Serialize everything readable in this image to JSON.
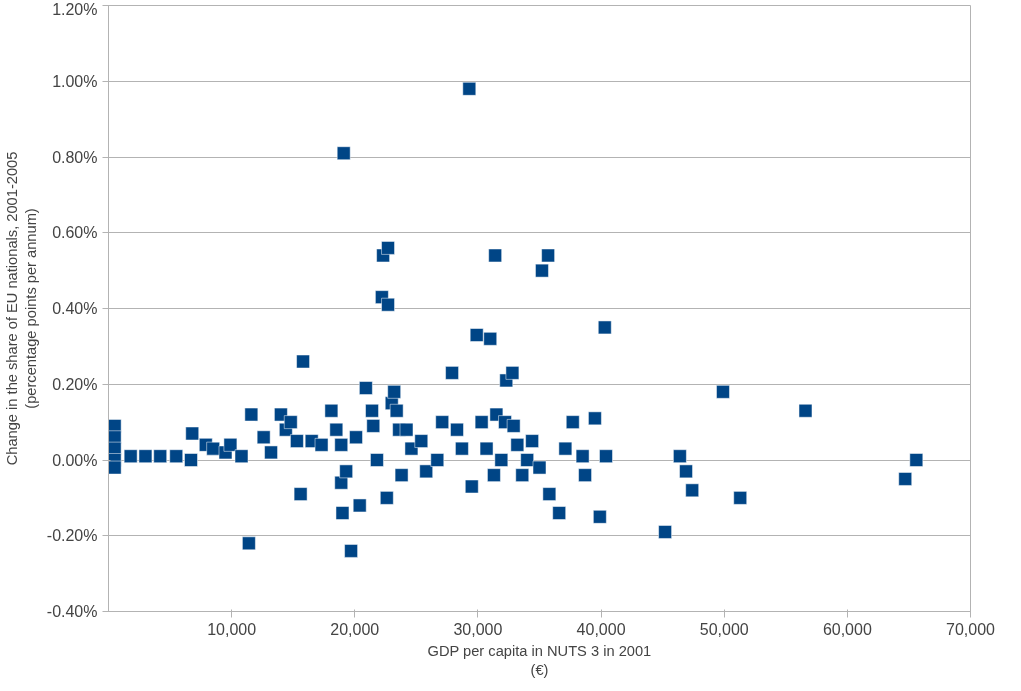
{
  "chart_data": {
    "type": "scatter",
    "xlabel": "GDP per capita in NUTS 3 in 2001\n(€)",
    "ylabel": "Change in the share of EU nationals, 2001-2005\n(percentage points per annum)",
    "marker": "square",
    "grid": "y",
    "xlim": [
      0,
      70000
    ],
    "xticks": [
      {
        "value": 10000,
        "label": "10,000"
      },
      {
        "value": 20000,
        "label": "20,000"
      },
      {
        "value": 30000,
        "label": "30,000"
      },
      {
        "value": 40000,
        "label": "40,000"
      },
      {
        "value": 50000,
        "label": "50,000"
      },
      {
        "value": 60000,
        "label": "60,000"
      },
      {
        "value": 70000,
        "label": "70,000"
      }
    ],
    "ylim": [
      -0.4,
      1.2
    ],
    "yticks": [
      {
        "value": -0.4,
        "label": "-0.40%"
      },
      {
        "value": -0.2,
        "label": "-0.20%"
      },
      {
        "value": 0,
        "label": "0.00%"
      },
      {
        "value": 0.2,
        "label": "0.20%"
      },
      {
        "value": 0.4,
        "label": "0.40%"
      },
      {
        "value": 0.6,
        "label": "0.60%"
      },
      {
        "value": 0.8,
        "label": "0.80%"
      },
      {
        "value": 1.0,
        "label": "1.00%"
      },
      {
        "value": 1.2,
        "label": "1.20%"
      }
    ],
    "series": [
      {
        "color": "#004586",
        "x": [
          500,
          500,
          500,
          500,
          500,
          1800,
          3000,
          4200,
          5500,
          6700,
          6800,
          7900,
          8500,
          9500,
          9900,
          10800,
          11600,
          11400,
          12600,
          13200,
          14000,
          14400,
          14800,
          15300,
          15800,
          15600,
          16500,
          17300,
          18100,
          18500,
          18900,
          18900,
          19100,
          19000,
          19300,
          19700,
          20100,
          20400,
          20900,
          21400,
          21500,
          21800,
          22200,
          22300,
          22700,
          22700,
          22600,
          23000,
          23200,
          23400,
          23600,
          23800,
          24200,
          24600,
          25400,
          25800,
          26700,
          27100,
          27900,
          28300,
          28700,
          29300,
          29500,
          29900,
          30300,
          30700,
          31000,
          31300,
          31400,
          31500,
          31900,
          32200,
          32300,
          32800,
          32900,
          33200,
          33600,
          34000,
          34400,
          35000,
          35200,
          35700,
          35800,
          36600,
          37100,
          37700,
          38500,
          38700,
          39500,
          39900,
          40300,
          40400,
          46400,
          46900,
          45200,
          47400,
          49900,
          51300,
          56600,
          64700,
          65600
        ],
        "values": [
          0.09,
          0.06,
          0.03,
          0.0,
          -0.02,
          0.01,
          0.01,
          0.01,
          0.01,
          0.0,
          0.07,
          0.04,
          0.03,
          0.02,
          0.04,
          0.01,
          0.12,
          -0.22,
          0.06,
          0.02,
          0.12,
          0.08,
          0.1,
          0.05,
          0.26,
          -0.09,
          0.05,
          0.04,
          0.13,
          0.08,
          0.04,
          -0.06,
          0.81,
          -0.14,
          -0.03,
          -0.24,
          0.06,
          -0.12,
          0.19,
          0.13,
          0.09,
          0.0,
          0.43,
          0.54,
          0.56,
          0.41,
          -0.1,
          0.15,
          0.18,
          0.13,
          0.08,
          -0.04,
          0.08,
          0.03,
          0.05,
          -0.03,
          0.0,
          0.1,
          0.23,
          0.08,
          0.03,
          0.98,
          -0.07,
          0.33,
          0.1,
          0.03,
          0.32,
          -0.04,
          0.54,
          0.12,
          0.0,
          0.1,
          0.21,
          0.23,
          0.09,
          0.04,
          -0.04,
          0.0,
          0.05,
          -0.02,
          0.5,
          0.54,
          -0.09,
          -0.14,
          0.03,
          0.1,
          0.01,
          -0.04,
          0.11,
          -0.15,
          0.35,
          0.01,
          0.01,
          -0.03,
          -0.19,
          -0.08,
          0.18,
          -0.1,
          0.13,
          -0.05,
          0.0
        ]
      }
    ]
  }
}
